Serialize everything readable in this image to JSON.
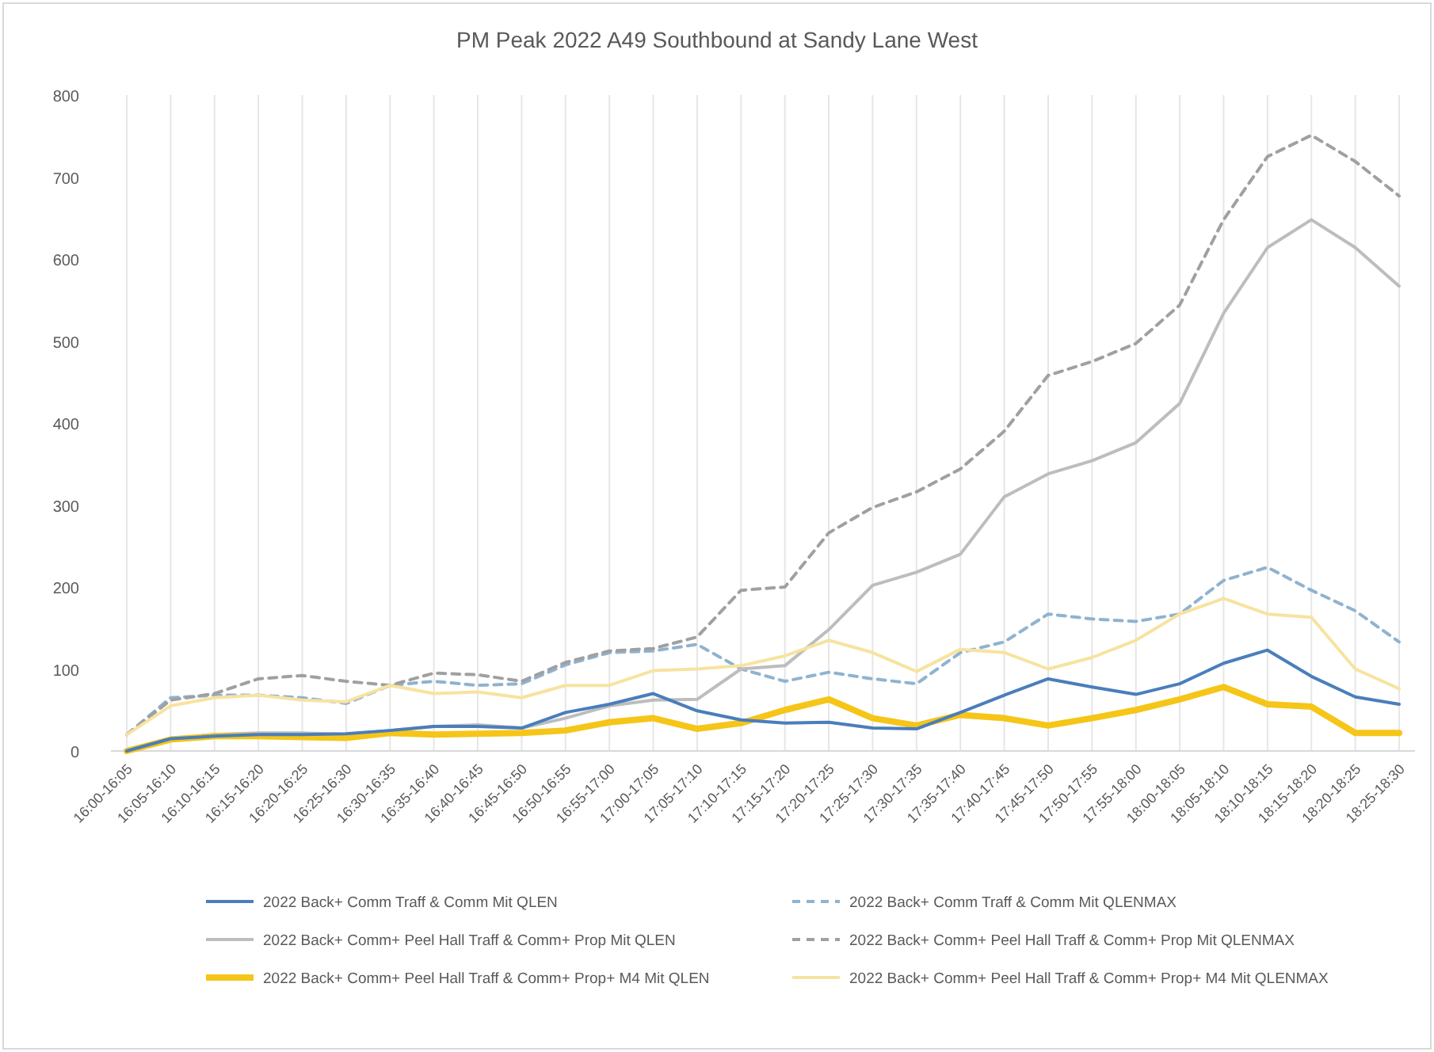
{
  "chart_data": {
    "type": "line",
    "title": "PM Peak 2022 A49 Southbound at Sandy Lane West",
    "categories": [
      "16:00-16:05",
      "16:05-16:10",
      "16:10-16:15",
      "16:15-16:20",
      "16:20-16:25",
      "16:25-16:30",
      "16:30-16:35",
      "16:35-16:40",
      "16:40-16:45",
      "16:45-16:50",
      "16:50-16:55",
      "16:55-17:00",
      "17:00-17:05",
      "17:05-17:10",
      "17:10-17:15",
      "17:15-17:20",
      "17:20-17:25",
      "17:25-17:30",
      "17:30-17:35",
      "17:35-17:40",
      "17:40-17:45",
      "17:45-17:50",
      "17:50-17:55",
      "17:55-18:00",
      "18:00-18:05",
      "18:05-18:10",
      "18:10-18:15",
      "18:15-18:20",
      "18:20-18:25",
      "18:25-18:30"
    ],
    "series": [
      {
        "name": "2022 Back+ Comm Traff & Comm Mit QLEN",
        "color": "#4a7ebb",
        "line_style": "solid",
        "values": [
          0,
          15,
          18,
          20,
          20,
          21,
          25,
          30,
          30,
          28,
          47,
          57,
          70,
          49,
          38,
          34,
          35,
          28,
          27,
          47,
          68,
          88,
          78,
          69,
          82,
          107,
          123,
          91,
          66,
          57
        ]
      },
      {
        "name": "2022 Back+ Comm Traff & Comm Mit QLENMAX",
        "color": "#8fb3d0",
        "line_style": "dashed",
        "values": [
          20,
          65,
          68,
          68,
          65,
          58,
          80,
          85,
          80,
          82,
          105,
          120,
          122,
          130,
          100,
          85,
          96,
          88,
          82,
          120,
          133,
          167,
          161,
          158,
          167,
          208,
          224,
          196,
          171,
          133
        ]
      },
      {
        "name": "2022 Back+ Comm+ Peel Hall Traff & Comm+ Prop Mit QLEN",
        "color": "#bdbdbd",
        "line_style": "solid",
        "values": [
          0,
          15,
          20,
          22,
          22,
          20,
          25,
          30,
          32,
          28,
          40,
          55,
          62,
          63,
          100,
          104,
          148,
          202,
          218,
          240,
          310,
          338,
          354,
          376,
          424,
          534,
          614,
          648,
          614,
          567
        ]
      },
      {
        "name": "2022 Back+ Comm+ Peel Hall Traff & Comm+ Prop Mit QLENMAX",
        "color": "#a0a0a0",
        "line_style": "dashed",
        "values": [
          20,
          62,
          70,
          88,
          92,
          85,
          80,
          95,
          93,
          85,
          108,
          122,
          125,
          139,
          196,
          200,
          266,
          297,
          316,
          344,
          390,
          458,
          475,
          497,
          544,
          648,
          725,
          751,
          719,
          677
        ]
      },
      {
        "name": "2022 Back+ Comm+ Peel Hall Traff & Comm+ Prop+ M4 Mit QLEN",
        "color": "#f5c518",
        "line_style": "solid",
        "values": [
          0,
          14,
          18,
          18,
          17,
          16,
          22,
          20,
          21,
          22,
          25,
          35,
          40,
          27,
          34,
          50,
          63,
          40,
          31,
          44,
          40,
          31,
          40,
          50,
          63,
          78,
          57,
          54,
          22,
          22
        ]
      },
      {
        "name": "2022 Back+ Comm+ Peel Hall Traff & Comm+ Prop+ M4 Mit QLENMAX",
        "color": "#f7e3a0",
        "line_style": "solid",
        "values": [
          20,
          55,
          65,
          68,
          62,
          60,
          80,
          70,
          72,
          65,
          80,
          80,
          98,
          100,
          104,
          116,
          135,
          120,
          97,
          124,
          120,
          100,
          114,
          135,
          167,
          186,
          167,
          163,
          100,
          76
        ]
      }
    ],
    "ylim": [
      0,
      800
    ],
    "yticks": [
      0,
      100,
      200,
      300,
      400,
      500,
      600,
      700,
      800
    ],
    "grid": "x",
    "legend": "bottom"
  }
}
